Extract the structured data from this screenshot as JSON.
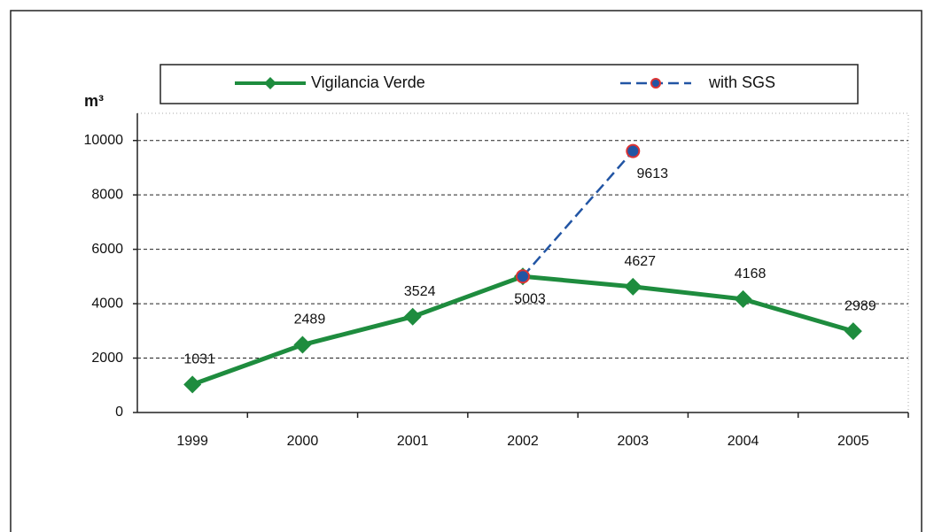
{
  "chart_data": {
    "type": "line",
    "y_label": "m³",
    "categories": [
      "1999",
      "2000",
      "2001",
      "2002",
      "2003",
      "2004",
      "2005"
    ],
    "series": [
      {
        "name": "Vigilancia Verde",
        "color": "#1e8c3e",
        "values": [
          1031,
          2489,
          3524,
          5003,
          4627,
          4168,
          2989
        ]
      },
      {
        "name": "with SGS",
        "color": "#2255a4",
        "values": [
          null,
          null,
          null,
          5003,
          9613,
          null,
          null
        ]
      }
    ],
    "ylim": [
      0,
      11000
    ],
    "yticks": [
      0,
      2000,
      4000,
      6000,
      8000,
      10000
    ],
    "grid": true,
    "legend": "top"
  }
}
